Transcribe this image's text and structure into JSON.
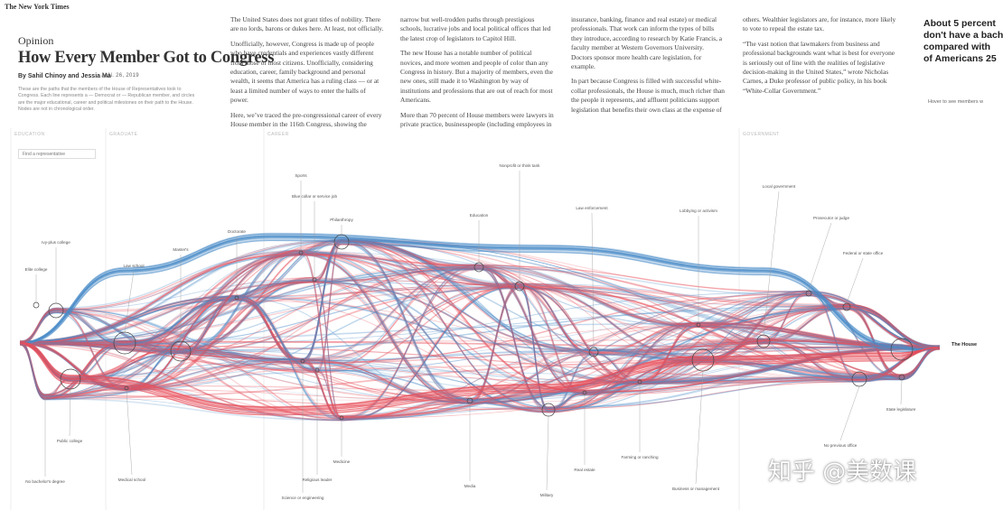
{
  "header": {
    "logo": "The New York Times",
    "section": "Opinion",
    "title": "How Every Member Got to Congress",
    "byline": "By Sahil Chinoy and Jessia Ma",
    "date": "JAN. 26, 2019"
  },
  "intro": "These are the paths that the members of the House of Representatives took to Congress. Each line represents a — Democrat or — Republican member, and circles are the major educational, career and political milestones on their path to the House. Nodes are not in chronological order.",
  "columns": [
    [
      "The United States does not grant titles of nobility. There are no lords, barons or dukes here. At least, not officially.",
      "Unofficially, however, Congress is made up of people who have credentials and experiences vastly different from those of most citizens. Unofficially, considering education, career, family background and personal wealth, it seems that America has a ruling class — or at least a limited number of ways to enter the halls of power.",
      "Here, we’ve traced the pre-congressional career of every House member in the 116th Congress, showing the"
    ],
    [
      "narrow but well-trodden paths through prestigious schools, lucrative jobs and local political offices that led the latest crop of legislators to Capitol Hill.",
      "The new House has a notable number of political novices, and more women and people of color than any Congress in history. But a majority of members, even the new ones, still made it to Washington by way of institutions and professions that are out of reach for most Americans.",
      "More than 70 percent of House members were lawyers in private practice, businesspeople (including employees in"
    ],
    [
      "insurance, banking, finance and real estate) or medical professionals. That work can inform the types of bills they introduce, according to research by Katie Francis, a faculty member at Western Governors University. Doctors sponsor more health care legislation, for example.",
      "In part because Congress is filled with successful white-collar professionals, the House is much, much richer than the people it represents, and affluent politicians support legislation that benefits their own class at the expense of"
    ],
    [
      "others. Wealthier legislators are, for instance, more likely to vote to repeal the estate tax.",
      "“The vast notion that lawmakers from business and professional backgrounds want what is best for everyone is seriously out of line with the realities of legislative decision-making in the United States,” wrote Nicholas Carnes, a Duke professor of public policy, in his book “White-Collar Government.”"
    ]
  ],
  "sidebar": {
    "lines": [
      "About 5 percent",
      "don't have a bach",
      "compared with",
      "of Americans 25"
    ],
    "hover": "Hover to see members w"
  },
  "diagram": {
    "sections": [
      "EDUCATION",
      "GRADUATE",
      "CAREER",
      "GOVERNMENT"
    ],
    "search": "Find a representative",
    "nodes": [
      {
        "label": "Elite college"
      },
      {
        "label": "Ivy-plus college"
      },
      {
        "label": "Public college"
      },
      {
        "label": "No bachelor's degree"
      },
      {
        "label": "Law school"
      },
      {
        "label": "Medical school"
      },
      {
        "label": "Master's"
      },
      {
        "label": "Doctorate"
      },
      {
        "label": "Sports"
      },
      {
        "label": "Blue collar or service job"
      },
      {
        "label": "Philanthropy"
      },
      {
        "label": "Science or engineering"
      },
      {
        "label": "Religious leader"
      },
      {
        "label": "Medicine"
      },
      {
        "label": "Education"
      },
      {
        "label": "Nonprofit or think tank"
      },
      {
        "label": "Media"
      },
      {
        "label": "Military"
      },
      {
        "label": "Law enforcement"
      },
      {
        "label": "Real estate"
      },
      {
        "label": "Farming or ranching"
      },
      {
        "label": "Lobbying or activism"
      },
      {
        "label": "Business or management"
      },
      {
        "label": "Local government"
      },
      {
        "label": "Prosecutor or judge"
      },
      {
        "label": "Federal or state office"
      },
      {
        "label": "No previous office"
      },
      {
        "label": "State legislature"
      },
      {
        "label": "The House"
      }
    ]
  },
  "watermark": "知乎 @美数课"
}
